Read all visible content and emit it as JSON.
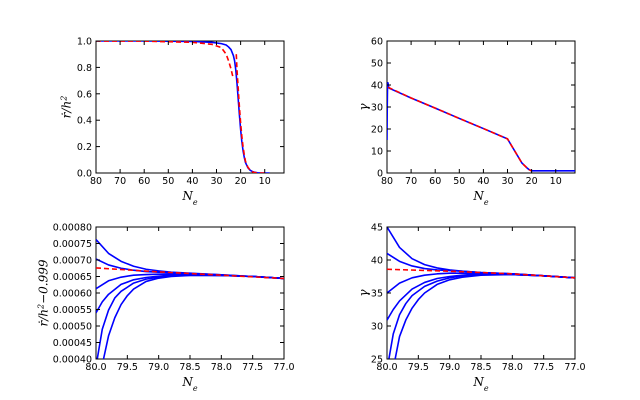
{
  "colors": {
    "model": "#0000ff",
    "approx": "#ff0000",
    "axes": "#000000"
  },
  "chart_data": [
    {
      "type": "line",
      "panel": "top-left",
      "xlabel": "N_e",
      "ylabel": "ṙ/h^2",
      "xlim": [
        80,
        2
      ],
      "ylim": [
        0.0,
        1.0
      ],
      "xticks": [
        "80",
        "70",
        "60",
        "50",
        "40",
        "30",
        "20",
        "10"
      ],
      "xtick_values": [
        80,
        70,
        60,
        50,
        40,
        30,
        20,
        10
      ],
      "yticks": [
        "0.0",
        "0.2",
        "0.4",
        "0.6",
        "0.8",
        "1.0"
      ],
      "ytick_values": [
        0.0,
        0.2,
        0.4,
        0.6,
        0.8,
        1.0
      ],
      "series": [
        {
          "color": "#0000ff",
          "style": "solid",
          "x": [
            80,
            60,
            40,
            32,
            28,
            26,
            25,
            24,
            23,
            22.5,
            22,
            21.5,
            21,
            20.5,
            20,
            19.5,
            19,
            18.5,
            18,
            17,
            16,
            15,
            14,
            13,
            12,
            11,
            10,
            9,
            8
          ],
          "y": [
            1.0,
            1.0,
            0.997,
            0.99,
            0.98,
            0.97,
            0.955,
            0.935,
            0.89,
            0.85,
            0.78,
            0.68,
            0.56,
            0.44,
            0.33,
            0.24,
            0.17,
            0.12,
            0.08,
            0.04,
            0.02,
            0.01,
            0.005,
            0.002,
            0.001,
            0.0,
            0.0,
            0.0,
            0.0
          ]
        },
        {
          "color": "#ff0000",
          "style": "dashed",
          "x": [
            80,
            60,
            40,
            32,
            28,
            26,
            25,
            24,
            23.5,
            23.2
          ],
          "y": [
            1.0,
            0.999,
            0.99,
            0.975,
            0.95,
            0.9,
            0.85,
            0.79,
            0.75,
            0.73
          ]
        },
        {
          "color": "#ff0000",
          "style": "dashed",
          "x": [
            21.8,
            21.5,
            21,
            20.5,
            20,
            19.5,
            19,
            18.5,
            18,
            17,
            16,
            15,
            14,
            13,
            12,
            11,
            10,
            9
          ],
          "y": [
            0.9,
            0.78,
            0.64,
            0.5,
            0.38,
            0.28,
            0.2,
            0.14,
            0.09,
            0.045,
            0.02,
            0.008,
            0.003,
            0.001,
            0.0,
            0.0,
            0.0,
            0.0
          ]
        }
      ]
    },
    {
      "type": "line",
      "panel": "top-right",
      "xlabel": "N_e",
      "ylabel": "γ",
      "xlim": [
        80,
        2
      ],
      "ylim": [
        0,
        60
      ],
      "xticks": [
        "80",
        "70",
        "60",
        "50",
        "40",
        "30",
        "20",
        "10"
      ],
      "xtick_values": [
        80,
        70,
        60,
        50,
        40,
        30,
        20,
        10
      ],
      "yticks": [
        "0",
        "10",
        "20",
        "30",
        "40",
        "50",
        "60"
      ],
      "ytick_values": [
        0,
        10,
        20,
        30,
        40,
        50,
        60
      ],
      "series": [
        {
          "color": "#0000ff",
          "style": "solid",
          "x": [
            80,
            79.9,
            79.8,
            79.6,
            79.3,
            79,
            70,
            60,
            50,
            40,
            30,
            24,
            22,
            21,
            20.5,
            20,
            15,
            10,
            5,
            2
          ],
          "y": [
            15,
            30,
            38,
            41,
            39,
            38.5,
            34.1,
            29.5,
            24.8,
            20.2,
            15.5,
            4.5,
            2.4,
            1.5,
            1.2,
            1.0,
            1.0,
            1.0,
            1.0,
            1.0
          ]
        },
        {
          "color": "#ff0000",
          "style": "dashed",
          "x": [
            79.6,
            70,
            60,
            50,
            40,
            30,
            24,
            22,
            21,
            20.5,
            20
          ],
          "y": [
            39,
            34.1,
            29.5,
            24.8,
            20.2,
            15.5,
            4.5,
            2.4,
            1.5,
            1.2,
            1.0
          ]
        }
      ]
    },
    {
      "type": "line",
      "panel": "bottom-left",
      "xlabel": "N_e",
      "ylabel": "ṙ/h^2−0.999",
      "xlim": [
        80.0,
        77.0
      ],
      "ylim": [
        0.0004,
        0.0008
      ],
      "xticks": [
        "80.0",
        "79.5",
        "79.0",
        "78.5",
        "78.0",
        "77.5",
        "77.0"
      ],
      "xtick_values": [
        80.0,
        79.5,
        79.0,
        78.5,
        78.0,
        77.5,
        77.0
      ],
      "yticks": [
        "0.00040",
        "0.00045",
        "0.00050",
        "0.00055",
        "0.00060",
        "0.00065",
        "0.00070",
        "0.00075",
        "0.00080"
      ],
      "ytick_values": [
        0.0004,
        0.00045,
        0.0005,
        0.00055,
        0.0006,
        0.00065,
        0.0007,
        0.00075,
        0.0008
      ],
      "series": [
        {
          "color": "#0000ff",
          "style": "solid",
          "x": [
            80.0,
            79.8,
            79.6,
            79.4,
            79.2,
            79.0,
            78.8,
            78.5,
            78.0,
            77.5,
            77.0
          ],
          "y": [
            0.000762,
            0.00072,
            0.000696,
            0.000681,
            0.000672,
            0.000667,
            0.000663,
            0.00066,
            0.000655,
            0.00065,
            0.000644
          ]
        },
        {
          "color": "#0000ff",
          "style": "solid",
          "x": [
            80.0,
            79.8,
            79.6,
            79.4,
            79.2,
            79.0,
            78.8,
            78.5,
            78.0,
            77.5,
            77.0
          ],
          "y": [
            0.000703,
            0.000685,
            0.000675,
            0.000669,
            0.000665,
            0.000663,
            0.000661,
            0.000659,
            0.000655,
            0.00065,
            0.000644
          ]
        },
        {
          "color": "#0000ff",
          "style": "solid",
          "x": [
            80.0,
            79.8,
            79.6,
            79.4,
            79.2,
            79.0,
            78.8,
            78.5,
            78.0,
            77.5,
            77.0
          ],
          "y": [
            0.000613,
            0.000637,
            0.000648,
            0.000654,
            0.000656,
            0.000657,
            0.000657,
            0.000657,
            0.000654,
            0.00065,
            0.000644
          ]
        },
        {
          "color": "#0000ff",
          "style": "solid",
          "x": [
            80.0,
            79.9,
            79.8,
            79.6,
            79.4,
            79.2,
            79.0,
            78.8,
            78.5,
            78.0,
            77.5,
            77.0
          ],
          "y": [
            0.00054,
            0.000573,
            0.000596,
            0.000626,
            0.00064,
            0.000647,
            0.000651,
            0.000654,
            0.000655,
            0.000653,
            0.00065,
            0.000644
          ]
        },
        {
          "color": "#0000ff",
          "style": "solid",
          "x": [
            79.98,
            79.9,
            79.8,
            79.7,
            79.6,
            79.4,
            79.2,
            79.0,
            78.8,
            78.5,
            78.0,
            77.5,
            77.0
          ],
          "y": [
            0.0004,
            0.00049,
            0.000548,
            0.000585,
            0.000605,
            0.00063,
            0.000642,
            0.000648,
            0.000652,
            0.000654,
            0.000653,
            0.00065,
            0.000644
          ]
        },
        {
          "color": "#0000ff",
          "style": "solid",
          "x": [
            79.88,
            79.8,
            79.7,
            79.6,
            79.5,
            79.4,
            79.2,
            79.0,
            78.8,
            78.5,
            78.0,
            77.5,
            77.0
          ],
          "y": [
            0.0004,
            0.00047,
            0.000525,
            0.000565,
            0.000592,
            0.000612,
            0.000635,
            0.000645,
            0.00065,
            0.000653,
            0.000653,
            0.00065,
            0.000644
          ]
        },
        {
          "color": "#ff0000",
          "style": "dashed",
          "x": [
            80.0,
            79.5,
            79.0,
            78.5,
            78.0,
            77.5,
            77.0
          ],
          "y": [
            0.000676,
            0.00067,
            0.000664,
            0.000659,
            0.000654,
            0.000649,
            0.000644
          ]
        }
      ]
    },
    {
      "type": "line",
      "panel": "bottom-right",
      "xlabel": "N_e",
      "ylabel": "γ",
      "xlim": [
        80.0,
        77.0
      ],
      "ylim": [
        25,
        45
      ],
      "xticks": [
        "80.0",
        "79.5",
        "79.0",
        "78.5",
        "78.0",
        "77.5",
        "77.0"
      ],
      "xtick_values": [
        80.0,
        79.5,
        79.0,
        78.5,
        78.0,
        77.5,
        77.0
      ],
      "yticks": [
        "25",
        "30",
        "35",
        "40",
        "45"
      ],
      "ytick_values": [
        25,
        30,
        35,
        40,
        45
      ],
      "series": [
        {
          "color": "#0000ff",
          "style": "solid",
          "x": [
            80.0,
            79.8,
            79.6,
            79.4,
            79.2,
            79.0,
            78.8,
            78.5,
            78.0,
            77.5,
            77.0
          ],
          "y": [
            45.0,
            41.9,
            40.2,
            39.3,
            38.8,
            38.5,
            38.3,
            38.1,
            37.9,
            37.6,
            37.3
          ]
        },
        {
          "color": "#0000ff",
          "style": "solid",
          "x": [
            80.0,
            79.8,
            79.6,
            79.4,
            79.2,
            79.0,
            78.8,
            78.5,
            78.0,
            77.5,
            77.0
          ],
          "y": [
            41.0,
            39.8,
            39.1,
            38.7,
            38.5,
            38.4,
            38.3,
            38.1,
            37.9,
            37.6,
            37.3
          ]
        },
        {
          "color": "#0000ff",
          "style": "solid",
          "x": [
            80.0,
            79.8,
            79.6,
            79.4,
            79.2,
            79.0,
            78.8,
            78.5,
            78.0,
            77.5,
            77.0
          ],
          "y": [
            35.0,
            36.5,
            37.3,
            37.7,
            37.9,
            38.0,
            38.0,
            38.0,
            37.9,
            37.6,
            37.3
          ]
        },
        {
          "color": "#0000ff",
          "style": "solid",
          "x": [
            80.0,
            79.9,
            79.8,
            79.6,
            79.4,
            79.2,
            79.0,
            78.8,
            78.5,
            78.0,
            77.5,
            77.0
          ],
          "y": [
            30.9,
            32.5,
            33.8,
            35.6,
            36.6,
            37.2,
            37.5,
            37.7,
            37.9,
            37.8,
            37.6,
            37.3
          ]
        },
        {
          "color": "#0000ff",
          "style": "solid",
          "x": [
            79.97,
            79.9,
            79.8,
            79.7,
            79.6,
            79.4,
            79.2,
            79.0,
            78.8,
            78.5,
            78.0,
            77.5,
            77.0
          ],
          "y": [
            25.0,
            28.8,
            31.7,
            33.4,
            34.6,
            36.0,
            36.8,
            37.3,
            37.6,
            37.8,
            37.8,
            37.6,
            37.3
          ]
        },
        {
          "color": "#0000ff",
          "style": "solid",
          "x": [
            79.87,
            79.8,
            79.7,
            79.6,
            79.5,
            79.4,
            79.2,
            79.0,
            78.8,
            78.5,
            78.0,
            77.5,
            77.0
          ],
          "y": [
            25.0,
            28.4,
            30.9,
            32.7,
            34.0,
            35.0,
            36.3,
            37.0,
            37.4,
            37.7,
            37.8,
            37.6,
            37.3
          ]
        },
        {
          "color": "#ff0000",
          "style": "dashed",
          "x": [
            80.0,
            79.5,
            79.0,
            78.5,
            78.0,
            77.5,
            77.0
          ],
          "y": [
            38.6,
            38.45,
            38.3,
            38.1,
            37.9,
            37.6,
            37.3
          ]
        }
      ]
    }
  ]
}
